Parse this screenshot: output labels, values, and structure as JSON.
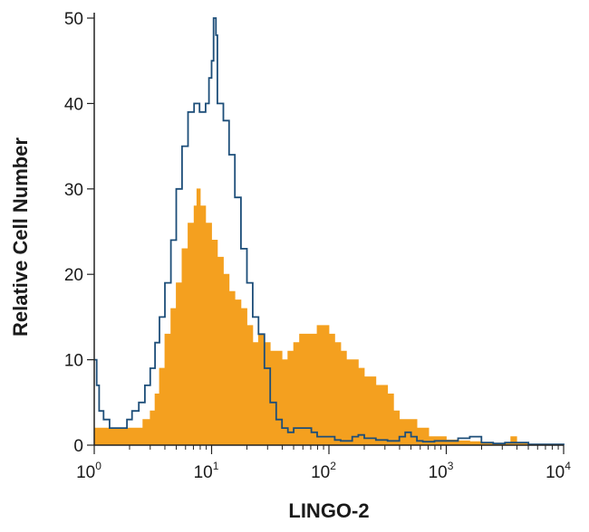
{
  "chart_data": {
    "type": "area",
    "xscale": "log",
    "xlim": [
      1,
      10000
    ],
    "ylim": [
      0,
      50
    ],
    "xlabel": "LINGO-2",
    "ylabel": "Relative Cell Number",
    "yticks": [
      "0",
      "10",
      "20",
      "30",
      "40",
      "50"
    ],
    "xticks": [
      {
        "value": 1,
        "base": "10",
        "exp": "0"
      },
      {
        "value": 10,
        "base": "10",
        "exp": "1"
      },
      {
        "value": 100,
        "base": "10",
        "exp": "2"
      },
      {
        "value": 1000,
        "base": "10",
        "exp": "3"
      },
      {
        "value": 10000,
        "base": "10",
        "exp": "4"
      }
    ],
    "grid": false,
    "legend": "none",
    "series": [
      {
        "style": "filled",
        "color": "#f4a01f",
        "points": [
          [
            1.0,
            2
          ],
          [
            1.3,
            2
          ],
          [
            1.6,
            2
          ],
          [
            2.0,
            2
          ],
          [
            2.3,
            2
          ],
          [
            2.6,
            3
          ],
          [
            3.0,
            4
          ],
          [
            3.3,
            6
          ],
          [
            3.6,
            9
          ],
          [
            4.0,
            13
          ],
          [
            4.5,
            16
          ],
          [
            5.0,
            19
          ],
          [
            5.6,
            23
          ],
          [
            6.3,
            26
          ],
          [
            7.1,
            28
          ],
          [
            7.5,
            30
          ],
          [
            8.0,
            28
          ],
          [
            8.9,
            26
          ],
          [
            10.0,
            24
          ],
          [
            11.2,
            22
          ],
          [
            12.6,
            20
          ],
          [
            14.1,
            18
          ],
          [
            15.8,
            17
          ],
          [
            17.8,
            16
          ],
          [
            20.0,
            14
          ],
          [
            22.4,
            12
          ],
          [
            25.1,
            13
          ],
          [
            28.2,
            12
          ],
          [
            31.6,
            11
          ],
          [
            35.5,
            11
          ],
          [
            39.8,
            10
          ],
          [
            44.7,
            11
          ],
          [
            50.1,
            12
          ],
          [
            56.2,
            13
          ],
          [
            63.1,
            13
          ],
          [
            70.8,
            13
          ],
          [
            79.4,
            14
          ],
          [
            89.1,
            14
          ],
          [
            100,
            13
          ],
          [
            112,
            12
          ],
          [
            126,
            11
          ],
          [
            141,
            10
          ],
          [
            158,
            10
          ],
          [
            178,
            9
          ],
          [
            200,
            8
          ],
          [
            224,
            8
          ],
          [
            251,
            7
          ],
          [
            282,
            7
          ],
          [
            316,
            6
          ],
          [
            355,
            4
          ],
          [
            398,
            3
          ],
          [
            447,
            3
          ],
          [
            501,
            3
          ],
          [
            562,
            2
          ],
          [
            631,
            2
          ],
          [
            708,
            1
          ],
          [
            794,
            1
          ],
          [
            891,
            1
          ],
          [
            1000,
            0.6
          ],
          [
            1260,
            0.5
          ],
          [
            1585,
            0.4
          ],
          [
            1995,
            0.2
          ],
          [
            2512,
            0.2
          ],
          [
            3162,
            0.3
          ],
          [
            3548,
            1
          ],
          [
            3981,
            0.2
          ],
          [
            5012,
            0.1
          ],
          [
            7943,
            0
          ],
          [
            10000,
            0
          ]
        ]
      },
      {
        "style": "outline",
        "color": "#1d4e79",
        "points": [
          [
            1.0,
            10
          ],
          [
            1.05,
            7
          ],
          [
            1.1,
            4
          ],
          [
            1.2,
            3
          ],
          [
            1.35,
            2
          ],
          [
            1.5,
            2
          ],
          [
            1.7,
            2
          ],
          [
            1.9,
            3
          ],
          [
            2.1,
            4
          ],
          [
            2.4,
            5
          ],
          [
            2.7,
            7
          ],
          [
            3.0,
            9
          ],
          [
            3.3,
            12
          ],
          [
            3.6,
            15
          ],
          [
            4.0,
            19
          ],
          [
            4.5,
            24
          ],
          [
            5.0,
            30
          ],
          [
            5.6,
            35
          ],
          [
            6.3,
            39
          ],
          [
            7.1,
            40
          ],
          [
            7.9,
            39
          ],
          [
            8.9,
            40
          ],
          [
            9.5,
            43
          ],
          [
            10.0,
            45
          ],
          [
            10.4,
            50
          ],
          [
            10.9,
            48
          ],
          [
            11.2,
            40
          ],
          [
            12.6,
            38
          ],
          [
            14.1,
            34
          ],
          [
            15.8,
            29
          ],
          [
            17.8,
            23
          ],
          [
            20.0,
            19
          ],
          [
            22.4,
            15
          ],
          [
            25.1,
            13
          ],
          [
            28.2,
            9
          ],
          [
            31.6,
            5
          ],
          [
            35.5,
            3
          ],
          [
            39.8,
            2
          ],
          [
            44.7,
            1.5
          ],
          [
            50.1,
            2
          ],
          [
            56.2,
            2
          ],
          [
            63.1,
            2
          ],
          [
            70.8,
            1.5
          ],
          [
            79.4,
            1
          ],
          [
            89.1,
            1
          ],
          [
            100,
            1
          ],
          [
            112,
            0.6
          ],
          [
            126,
            0.5
          ],
          [
            141,
            0.5
          ],
          [
            158,
            1
          ],
          [
            178,
            1.2
          ],
          [
            200,
            0.8
          ],
          [
            251,
            0.6
          ],
          [
            316,
            0.5
          ],
          [
            398,
            1
          ],
          [
            447,
            1.5
          ],
          [
            501,
            1
          ],
          [
            562,
            0.5
          ],
          [
            631,
            0.4
          ],
          [
            794,
            0.5
          ],
          [
            1000,
            0.5
          ],
          [
            1260,
            0.8
          ],
          [
            1585,
            1
          ],
          [
            1995,
            0.3
          ],
          [
            2512,
            0.2
          ],
          [
            3162,
            0.3
          ],
          [
            5012,
            0.1
          ],
          [
            10000,
            0
          ]
        ]
      }
    ]
  }
}
